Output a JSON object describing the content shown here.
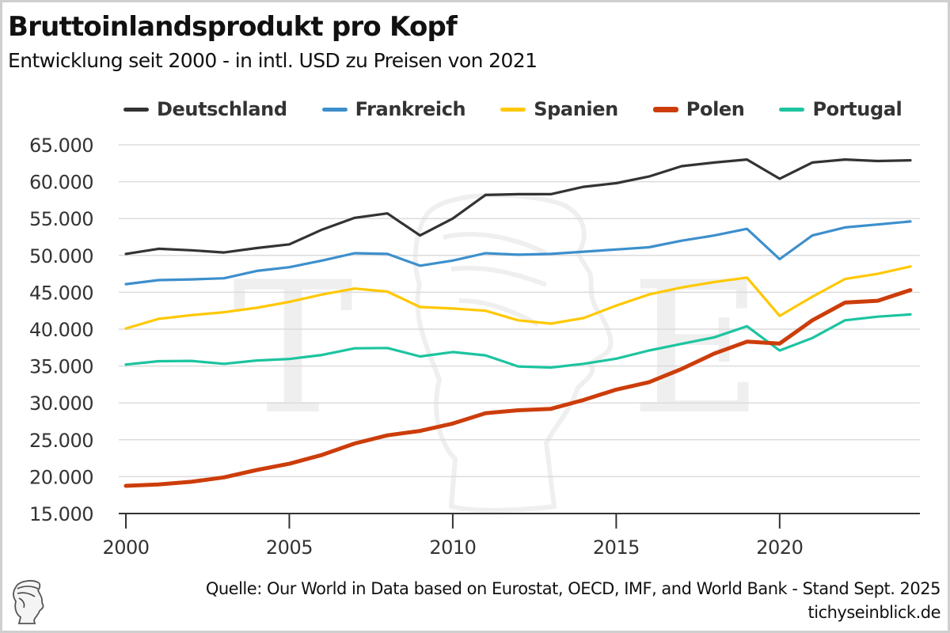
{
  "header": {
    "title": "Bruttoinlandsprodukt pro Kopf",
    "subtitle": "Entwicklung seit 2000 - in intl. USD zu Preisen von 2021"
  },
  "footer": {
    "source": "Quelle: Our World in Data based on Eurostat, OECD, IMF, and World Bank - Stand Sept. 2025",
    "site": "tichyseinblick.de",
    "logo_icon": "head-bust-logo-icon"
  },
  "watermark": {
    "left_letter": "T",
    "right_letter": "E",
    "color": "#efefef"
  },
  "chart_data": {
    "type": "line",
    "title": "Bruttoinlandsprodukt pro Kopf",
    "subtitle": "Entwicklung seit 2000 - in intl. USD zu Preisen von 2021",
    "xlabel": "",
    "ylabel": "",
    "x": [
      2000,
      2001,
      2002,
      2003,
      2004,
      2005,
      2006,
      2007,
      2008,
      2009,
      2010,
      2011,
      2012,
      2013,
      2014,
      2015,
      2016,
      2017,
      2018,
      2019,
      2020,
      2021,
      2022,
      2023,
      2024
    ],
    "xlim": [
      2000,
      2024
    ],
    "ylim": [
      15000,
      65000
    ],
    "x_ticks": [
      2000,
      2005,
      2010,
      2015,
      2020
    ],
    "x_tick_labels": [
      "2000",
      "2005",
      "2010",
      "2015",
      "2020"
    ],
    "y_ticks": [
      15000,
      20000,
      25000,
      30000,
      35000,
      40000,
      45000,
      50000,
      55000,
      60000,
      65000
    ],
    "y_tick_labels": [
      "15.000",
      "20.000",
      "25.000",
      "30.000",
      "35.000",
      "40.000",
      "45.000",
      "50.000",
      "55.000",
      "60.000",
      "65.000"
    ],
    "grid": "horizontal",
    "legend_position": "top",
    "series": [
      {
        "name": "Deutschland",
        "color": "#333333",
        "emphasis": false,
        "values": [
          50200,
          50900,
          50700,
          50400,
          51000,
          51500,
          53500,
          55100,
          55700,
          52700,
          55000,
          58200,
          58300,
          58300,
          59300,
          59800,
          60700,
          62100,
          62600,
          63000,
          60400,
          62600,
          63000,
          62800,
          62900
        ]
      },
      {
        "name": "Frankreich",
        "color": "#3d8fcc",
        "emphasis": false,
        "values": [
          46100,
          46650,
          46750,
          46900,
          47900,
          48400,
          49300,
          50300,
          50200,
          48600,
          49300,
          50300,
          50100,
          50200,
          50500,
          50800,
          51100,
          52000,
          52700,
          53600,
          49500,
          52700,
          53800,
          54200,
          54600
        ]
      },
      {
        "name": "Spanien",
        "color": "#ffc800",
        "emphasis": false,
        "values": [
          40100,
          41400,
          41900,
          42300,
          42900,
          43700,
          44700,
          45500,
          45100,
          43000,
          42800,
          42500,
          41200,
          40750,
          41500,
          43200,
          44700,
          45650,
          46400,
          47000,
          41800,
          44400,
          46800,
          47500,
          48500
        ]
      },
      {
        "name": "Polen",
        "color": "#cc3d0a",
        "emphasis": true,
        "values": [
          18750,
          18950,
          19300,
          19900,
          20900,
          21750,
          22950,
          24500,
          25600,
          26200,
          27200,
          28600,
          29000,
          29200,
          30400,
          31800,
          32800,
          34600,
          36700,
          38300,
          38050,
          41200,
          43600,
          43850,
          45300
        ]
      },
      {
        "name": "Portugal",
        "color": "#1cc4a0",
        "emphasis": false,
        "values": [
          35200,
          35650,
          35700,
          35300,
          35750,
          35950,
          36500,
          37400,
          37450,
          36300,
          36900,
          36450,
          34950,
          34800,
          35300,
          36000,
          37100,
          38000,
          38900,
          40400,
          37100,
          38800,
          41200,
          41700,
          42000
        ]
      }
    ]
  }
}
